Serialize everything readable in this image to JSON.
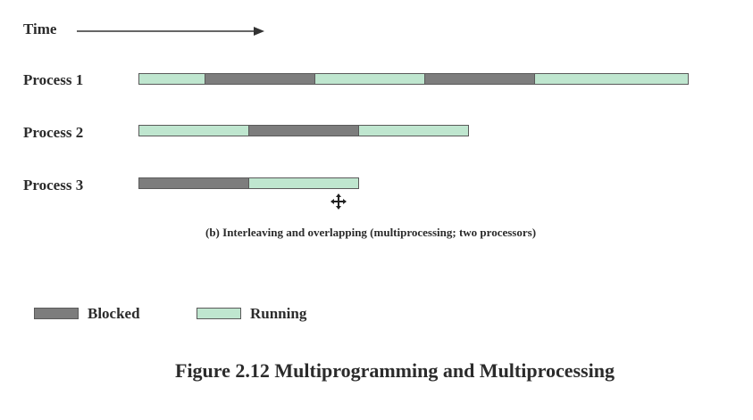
{
  "time_label": "Time",
  "processes": [
    {
      "label": "Process 1",
      "segments": [
        {
          "state": "running",
          "duration": 0.6
        },
        {
          "state": "blocked",
          "duration": 1.0
        },
        {
          "state": "running",
          "duration": 1.0
        },
        {
          "state": "blocked",
          "duration": 1.0
        },
        {
          "state": "running",
          "duration": 1.4
        }
      ]
    },
    {
      "label": "Process 2",
      "segments": [
        {
          "state": "running",
          "duration": 1.0
        },
        {
          "state": "blocked",
          "duration": 1.0
        },
        {
          "state": "running",
          "duration": 1.0
        }
      ]
    },
    {
      "label": "Process 3",
      "segments": [
        {
          "state": "blocked",
          "duration": 1.0
        },
        {
          "state": "running",
          "duration": 1.0
        }
      ]
    }
  ],
  "subcaption": "(b)  Interleaving and overlapping (multiprocessing; two processors)",
  "legend": {
    "blocked": "Blocked",
    "running": "Running"
  },
  "figure_caption": "Figure 2.12  Multiprogramming and Multiprocessing",
  "colors": {
    "running": "#bfe6cf",
    "blocked": "#7d7d7d"
  }
}
